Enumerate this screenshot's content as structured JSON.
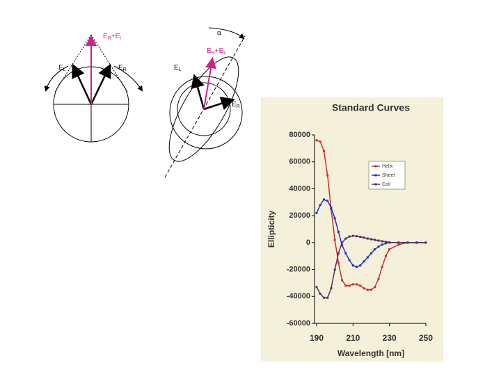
{
  "diagrams": {
    "left": {
      "sum_label": [
        "E",
        "R",
        "+E",
        "l"
      ],
      "left_label": [
        "E",
        "L"
      ],
      "right_label": [
        "E",
        "R"
      ]
    },
    "right": {
      "angle_label": "α",
      "sum_label": [
        "E",
        "R",
        "+E",
        "L"
      ],
      "left_label": [
        "E",
        "L"
      ],
      "right_label": [
        "E",
        "R"
      ]
    }
  },
  "chart_data": {
    "type": "line",
    "title": "Standard Curves",
    "x_label": "Wavelength [nm]",
    "y_label": "Ellipticity",
    "x": [
      190,
      192,
      194,
      196,
      198,
      200,
      202,
      204,
      206,
      208,
      210,
      212,
      214,
      216,
      218,
      220,
      222,
      224,
      226,
      228,
      230,
      235,
      240,
      245,
      250
    ],
    "series": [
      {
        "name": "Helix",
        "color": "#c8302c",
        "values": [
          76000,
          75000,
          68000,
          50000,
          25000,
          2000,
          -15000,
          -28000,
          -32000,
          -32000,
          -31000,
          -31000,
          -32000,
          -34000,
          -35000,
          -35000,
          -33000,
          -27000,
          -18000,
          -10000,
          -5000,
          -1500,
          0,
          0,
          0
        ]
      },
      {
        "name": "Sheet",
        "color": "#2030c0",
        "values": [
          22000,
          28000,
          32000,
          31000,
          26000,
          18000,
          8000,
          -2000,
          -8000,
          -13000,
          -17000,
          -18000,
          -17000,
          -14000,
          -11000,
          -8000,
          -5000,
          -3000,
          -1500,
          -500,
          0,
          0,
          0,
          0,
          0
        ]
      },
      {
        "name": "Coil",
        "color": "#5a2e5e",
        "values": [
          -33000,
          -38000,
          -41000,
          -41000,
          -34000,
          -20000,
          -8000,
          0,
          3000,
          4500,
          5000,
          4800,
          4300,
          3700,
          3000,
          2500,
          2000,
          1500,
          1000,
          500,
          200,
          0,
          0,
          0,
          0
        ]
      }
    ],
    "xlim": [
      190,
      250
    ],
    "xticks": [
      190,
      210,
      230,
      250
    ],
    "ylim": [
      -60000,
      80000
    ],
    "yticks": [
      -60000,
      -40000,
      -20000,
      0,
      20000,
      40000,
      60000,
      80000
    ],
    "legend": "upper right"
  }
}
